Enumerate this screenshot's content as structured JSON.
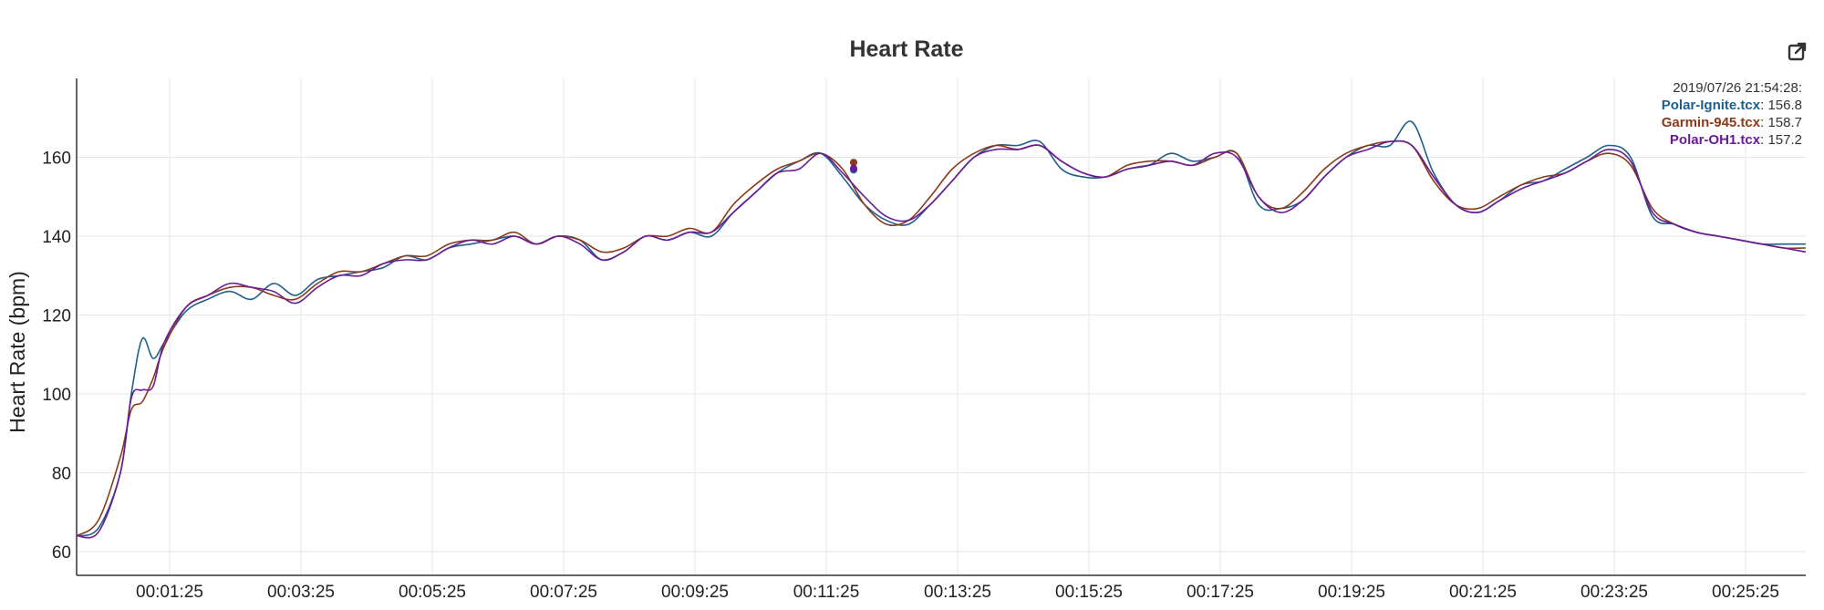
{
  "chart_data": {
    "type": "line",
    "title": "Heart Rate",
    "xlabel": "",
    "ylabel": "Heart Rate (bpm)",
    "ylim": [
      54,
      180
    ],
    "xlim": [
      "00:00:00",
      "00:26:20"
    ],
    "grid": true,
    "x_ticks": [
      "00:01:25",
      "00:03:25",
      "00:05:25",
      "00:07:25",
      "00:09:25",
      "00:11:25",
      "00:13:25",
      "00:15:25",
      "00:17:25",
      "00:19:25",
      "00:21:25",
      "00:23:25",
      "00:25:25"
    ],
    "y_ticks": [
      60,
      80,
      100,
      120,
      140,
      160
    ],
    "x": [
      "00:00:00",
      "00:00:20",
      "00:00:40",
      "00:00:50",
      "00:01:00",
      "00:01:10",
      "00:01:20",
      "00:01:40",
      "00:02:00",
      "00:02:20",
      "00:02:40",
      "00:03:00",
      "00:03:20",
      "00:03:40",
      "00:04:00",
      "00:04:20",
      "00:04:40",
      "00:05:00",
      "00:05:20",
      "00:05:40",
      "00:06:00",
      "00:06:20",
      "00:06:40",
      "00:07:00",
      "00:07:20",
      "00:07:40",
      "00:08:00",
      "00:08:20",
      "00:08:40",
      "00:09:00",
      "00:09:20",
      "00:09:40",
      "00:10:00",
      "00:10:20",
      "00:10:40",
      "00:11:00",
      "00:11:20",
      "00:11:40",
      "00:12:00",
      "00:12:20",
      "00:12:40",
      "00:13:00",
      "00:13:20",
      "00:13:40",
      "00:14:00",
      "00:14:20",
      "00:14:40",
      "00:15:00",
      "00:15:20",
      "00:15:40",
      "00:16:00",
      "00:16:20",
      "00:16:40",
      "00:17:00",
      "00:17:20",
      "00:17:40",
      "00:18:00",
      "00:18:20",
      "00:18:40",
      "00:19:00",
      "00:19:20",
      "00:19:40",
      "00:20:00",
      "00:20:20",
      "00:20:40",
      "00:21:00",
      "00:21:20",
      "00:21:40",
      "00:22:00",
      "00:22:20",
      "00:22:40",
      "00:23:00",
      "00:23:20",
      "00:23:40",
      "00:24:00",
      "00:24:20",
      "00:24:40",
      "00:25:00",
      "00:25:20",
      "00:25:40",
      "00:26:00",
      "00:26:20"
    ],
    "series": [
      {
        "name": "Polar-Ignite.tcx",
        "color": "#1f5f8b",
        "values": [
          64,
          66,
          80,
          100,
          114,
          109,
          113,
          121,
          124,
          126,
          124,
          128,
          125,
          129,
          130,
          131,
          132,
          135,
          134,
          137,
          138,
          139,
          140,
          138,
          140,
          139,
          134,
          136,
          140,
          139,
          141,
          140,
          146,
          151,
          156,
          159,
          161,
          155,
          148,
          144,
          143,
          148,
          154,
          160,
          163,
          163,
          164,
          157,
          155,
          155,
          157,
          158,
          161,
          159,
          160,
          161,
          148,
          147,
          149,
          155,
          160,
          163,
          163,
          169,
          156,
          148,
          146,
          149,
          153,
          154,
          157,
          160,
          163,
          160,
          145,
          143,
          141,
          140,
          139,
          138,
          138,
          138
        ]
      },
      {
        "name": "Garmin-945.tcx",
        "color": "#8b3a1a",
        "values": [
          64,
          68,
          84,
          96,
          98,
          104,
          112,
          122,
          125,
          127,
          127,
          125,
          124,
          128,
          131,
          131,
          133,
          135,
          135,
          138,
          139,
          139,
          141,
          138,
          140,
          139,
          136,
          137,
          140,
          140,
          142,
          141,
          148,
          153,
          157,
          159,
          161,
          157,
          148,
          143,
          144,
          150,
          157,
          161,
          163,
          162,
          163,
          159,
          156,
          155,
          158,
          159,
          159,
          158,
          160,
          161,
          150,
          147,
          151,
          157,
          161,
          163,
          164,
          163,
          154,
          148,
          147,
          150,
          153,
          155,
          156,
          159,
          161,
          158,
          147,
          143,
          141,
          140,
          139,
          138,
          137,
          137
        ]
      },
      {
        "name": "Polar-OH1.tcx",
        "color": "#6a1b9a",
        "values": [
          64,
          65,
          80,
          99,
          101,
          102,
          113,
          122,
          125,
          128,
          127,
          126,
          123,
          127,
          130,
          130,
          133,
          134,
          134,
          137,
          139,
          138,
          140,
          138,
          140,
          138,
          134,
          136,
          140,
          139,
          141,
          141,
          146,
          151,
          156,
          157,
          161,
          156,
          150,
          145,
          144,
          148,
          154,
          160,
          162,
          162,
          163,
          159,
          156,
          155,
          157,
          158,
          159,
          158,
          161,
          160,
          150,
          146,
          149,
          155,
          160,
          162,
          164,
          163,
          155,
          148,
          146,
          149,
          152,
          154,
          156,
          159,
          162,
          159,
          146,
          143,
          141,
          140,
          139,
          138,
          137,
          136
        ]
      }
    ],
    "tooltip": {
      "timestamp": "2019/07/26 21:54:28:",
      "x": "00:11:50",
      "entries": [
        {
          "name": "Polar-Ignite.tcx",
          "value": "156.8",
          "color": "#1f5f8b"
        },
        {
          "name": "Garmin-945.tcx",
          "value": "158.7",
          "color": "#8b3a1a"
        },
        {
          "name": "Polar-OH1.tcx",
          "value": "157.2",
          "color": "#6a1b9a"
        }
      ]
    }
  },
  "toolbar": {
    "export_icon": "external-link-icon"
  }
}
